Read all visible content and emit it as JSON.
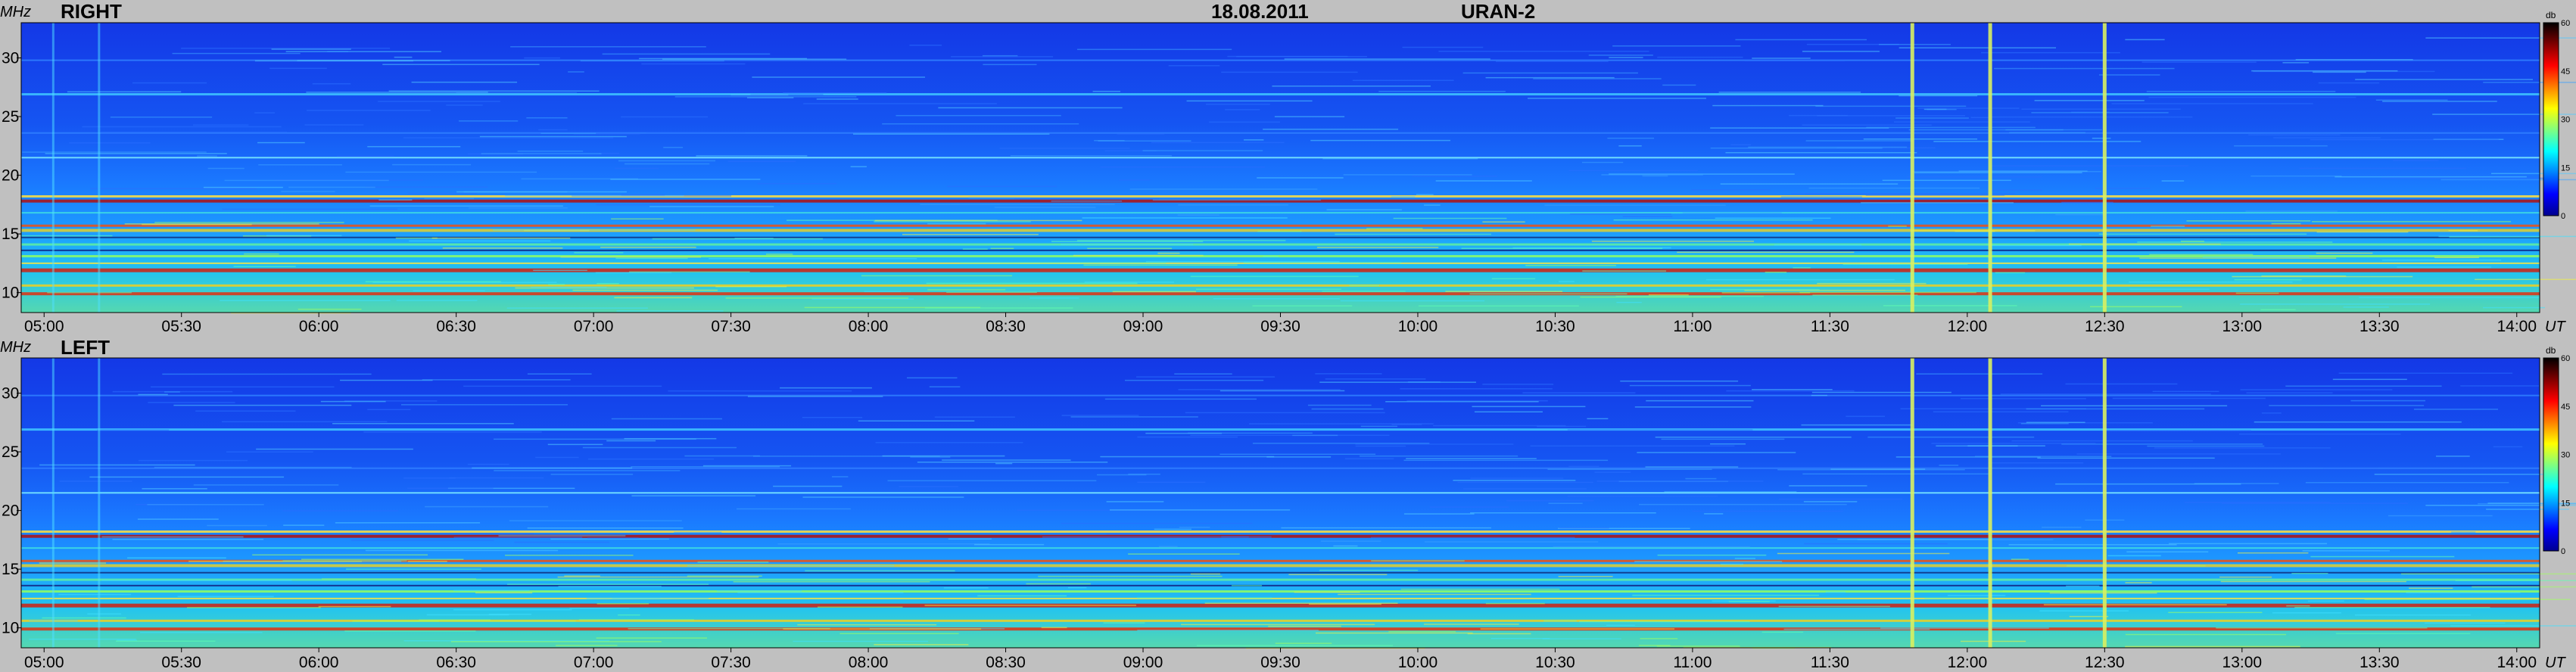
{
  "header": {
    "date": "18.08.2011",
    "instrument": "URAN-2"
  },
  "colors": {
    "background": "#c0c0c0",
    "colormap": [
      "#00008f",
      "#0000ff",
      "#0080ff",
      "#00ffff",
      "#80ff80",
      "#ffff00",
      "#ff8000",
      "#ff0000",
      "#800000",
      "#000000"
    ]
  },
  "chart_data": [
    {
      "type": "heatmap",
      "panel": "RIGHT",
      "title": "RIGHT",
      "ylabel": "MHz",
      "xlabel": "UT",
      "ylim": [
        8.3,
        33
      ],
      "yticks": [
        {
          "value": 10,
          "label": "10"
        },
        {
          "value": 15,
          "label": "15"
        },
        {
          "value": 20,
          "label": "20"
        },
        {
          "value": 25,
          "label": "25"
        },
        {
          "value": 30,
          "label": "30"
        }
      ],
      "x_start": "04:55",
      "x_end": "14:05",
      "xticks": [
        "05:00",
        "05:30",
        "06:00",
        "06:30",
        "07:00",
        "07:30",
        "08:00",
        "08:30",
        "09:00",
        "09:30",
        "10:00",
        "10:30",
        "11:00",
        "11:30",
        "12:00",
        "12:30",
        "13:00",
        "13:30",
        "14:00"
      ],
      "colorbar": {
        "label": "db",
        "range": [
          0,
          60
        ],
        "ticks": [
          "60",
          "45",
          "30",
          "15",
          "0"
        ]
      },
      "bursts_ut": [
        "11:48",
        "12:05",
        "12:30"
      ]
    },
    {
      "type": "heatmap",
      "panel": "LEFT",
      "title": "LEFT",
      "ylabel": "MHz",
      "xlabel": "UT",
      "ylim": [
        8.3,
        33
      ],
      "yticks": [
        {
          "value": 10,
          "label": "10"
        },
        {
          "value": 15,
          "label": "15"
        },
        {
          "value": 20,
          "label": "20"
        },
        {
          "value": 25,
          "label": "25"
        },
        {
          "value": 30,
          "label": "30"
        }
      ],
      "x_start": "04:55",
      "x_end": "14:05",
      "xticks": [
        "05:00",
        "05:30",
        "06:00",
        "06:30",
        "07:00",
        "07:30",
        "08:00",
        "08:30",
        "09:00",
        "09:30",
        "10:00",
        "10:30",
        "11:00",
        "11:30",
        "12:00",
        "12:30",
        "13:00",
        "13:30",
        "14:00"
      ],
      "colorbar": {
        "label": "db",
        "range": [
          0,
          60
        ],
        "ticks": [
          "60",
          "45",
          "30",
          "15",
          "0"
        ]
      },
      "bursts_ut": [
        "11:48",
        "12:05",
        "12:30"
      ]
    }
  ]
}
